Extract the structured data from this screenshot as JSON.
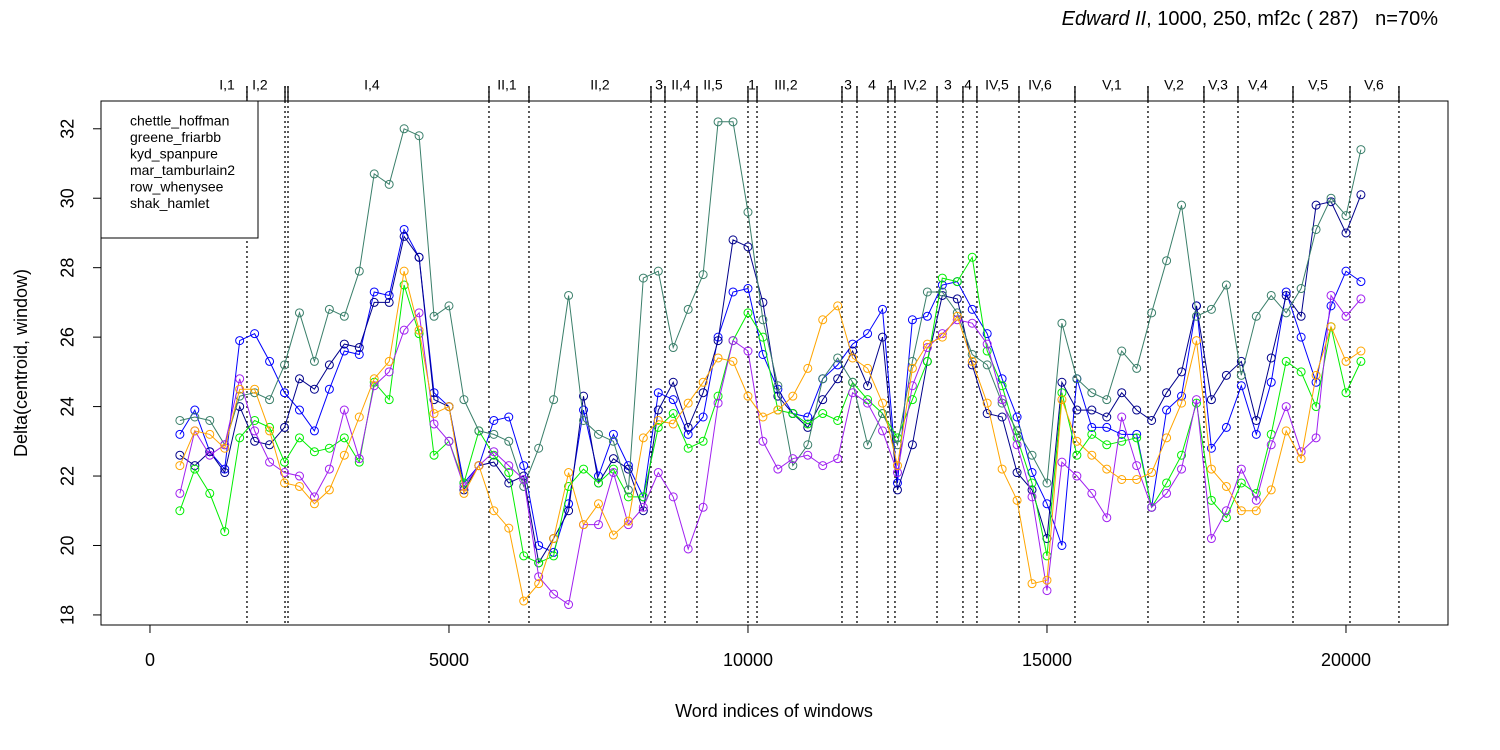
{
  "chart_data": {
    "type": "line",
    "title_italic": "Edward II",
    "title_rest": ", 1000, 250, mf2c ( 287)   n=70%",
    "x_label": "Word indices of windows",
    "y_label": "Delta(centroid, window)",
    "xlim": [
      -819,
      21706
    ],
    "ylim": [
      17.71,
      32.8
    ],
    "xticks": [
      0,
      5000,
      10000,
      15000,
      20000
    ],
    "yticks": [
      18,
      20,
      22,
      24,
      26,
      28,
      30,
      32
    ],
    "scene_boundaries": [
      1622,
      2258,
      2308,
      5669,
      6338,
      8378,
      8612,
      9147,
      10000,
      10151,
      11572,
      11823,
      12341,
      12458,
      13161,
      13595,
      13829,
      14532,
      15468,
      16689,
      17625,
      18194,
      19114,
      20067,
      20886
    ],
    "scenes": [
      {
        "label": "I,1",
        "x": 1288
      },
      {
        "label": "I,2",
        "x": 1839
      },
      {
        "label": "I,4",
        "x": 3712
      },
      {
        "label": "II,1",
        "x": 5970
      },
      {
        "label": "II,2",
        "x": 7525
      },
      {
        "label": "3",
        "x": 8512
      },
      {
        "label": "II,4",
        "x": 8880
      },
      {
        "label": "II,5",
        "x": 9415
      },
      {
        "label": "1",
        "x": 10067
      },
      {
        "label": "III,2",
        "x": 10635
      },
      {
        "label": "3",
        "x": 11672
      },
      {
        "label": "4",
        "x": 12074
      },
      {
        "label": "1",
        "x": 12391
      },
      {
        "label": "IV,2",
        "x": 12793
      },
      {
        "label": "3",
        "x": 13344
      },
      {
        "label": "4",
        "x": 13679
      },
      {
        "label": "IV,5",
        "x": 14164
      },
      {
        "label": "IV,6",
        "x": 14883
      },
      {
        "label": "V,1",
        "x": 16087
      },
      {
        "label": "V,2",
        "x": 17124
      },
      {
        "label": "V,3",
        "x": 17860
      },
      {
        "label": "V,4",
        "x": 18528
      },
      {
        "label": "V,5",
        "x": 19532
      },
      {
        "label": "V,6",
        "x": 20468
      }
    ],
    "x": [
      500,
      750,
      1000,
      1250,
      1500,
      1750,
      2000,
      2250,
      2500,
      2750,
      3000,
      3250,
      3500,
      3750,
      4000,
      4250,
      4500,
      4750,
      5000,
      5250,
      5500,
      5750,
      6000,
      6250,
      6500,
      6750,
      7000,
      7250,
      7500,
      7750,
      8000,
      8250,
      8500,
      8750,
      9000,
      9250,
      9500,
      9750,
      10000,
      10250,
      10500,
      10750,
      11000,
      11250,
      11500,
      11750,
      12000,
      12250,
      12500,
      12750,
      13000,
      13250,
      13500,
      13750,
      14000,
      14250,
      14500,
      14750,
      15000,
      15250,
      15500,
      15750,
      16000,
      16250,
      16500,
      16750,
      17000,
      17250,
      17500,
      17750,
      18000,
      18250,
      18500,
      18750,
      19000,
      19250,
      19500,
      19750,
      20000,
      20250
    ],
    "series": [
      {
        "name": "chettle_hoffman",
        "color": "#0000ff",
        "values": [
          23.2,
          23.9,
          22.7,
          22.2,
          25.9,
          26.1,
          25.3,
          24.4,
          23.9,
          23.3,
          24.5,
          25.6,
          25.5,
          27.3,
          27.2,
          29.1,
          28.3,
          24.4,
          24.0,
          21.8,
          22.3,
          23.6,
          23.7,
          22.3,
          20.0,
          19.8,
          21.2,
          23.9,
          22.0,
          23.2,
          22.3,
          21.4,
          24.4,
          24.2,
          23.2,
          23.7,
          26.0,
          27.3,
          27.4,
          25.5,
          24.5,
          23.8,
          23.7,
          24.8,
          25.2,
          25.8,
          26.1,
          26.8,
          21.8,
          26.5,
          26.6,
          27.5,
          27.6,
          26.8,
          26.1,
          24.8,
          23.7,
          22.1,
          21.2,
          20.0,
          24.8,
          23.4,
          23.4,
          23.2,
          23.2,
          21.1,
          23.9,
          24.3,
          26.9,
          22.8,
          23.4,
          24.6,
          23.2,
          24.7,
          27.3,
          26.0,
          24.7,
          26.9,
          27.9,
          27.6
        ]
      },
      {
        "name": "greene_friarbb",
        "color": "#00008b",
        "values": [
          22.6,
          22.3,
          22.7,
          22.1,
          24.0,
          23.0,
          22.9,
          23.4,
          24.8,
          24.5,
          25.2,
          25.8,
          25.7,
          27.0,
          27.0,
          28.9,
          28.3,
          24.2,
          24.0,
          21.6,
          22.3,
          22.4,
          21.8,
          22.0,
          19.5,
          20.2,
          21.0,
          24.3,
          21.8,
          22.5,
          22.2,
          21.0,
          23.9,
          24.7,
          23.4,
          24.4,
          25.9,
          28.8,
          28.6,
          27.0,
          24.3,
          23.8,
          23.4,
          24.2,
          24.8,
          25.6,
          24.6,
          26.0,
          21.6,
          22.9,
          25.3,
          27.2,
          27.1,
          25.2,
          23.8,
          23.7,
          22.1,
          21.6,
          20.2,
          24.7,
          23.9,
          23.9,
          23.7,
          24.4,
          23.9,
          23.6,
          24.4,
          25.0,
          26.9,
          24.2,
          24.9,
          25.3,
          23.6,
          25.4,
          27.2,
          26.6,
          29.8,
          29.9,
          29.0,
          30.1
        ]
      },
      {
        "name": "kyd_spanpure",
        "color": "#00ee00",
        "values": [
          21.0,
          22.2,
          21.5,
          20.4,
          23.1,
          23.6,
          23.4,
          22.4,
          23.1,
          22.7,
          22.8,
          23.1,
          22.4,
          24.7,
          24.2,
          27.5,
          26.1,
          22.6,
          23.0,
          21.8,
          23.3,
          22.6,
          22.1,
          19.7,
          19.5,
          19.7,
          21.7,
          22.2,
          21.8,
          22.2,
          21.4,
          21.4,
          23.4,
          23.8,
          22.8,
          23.0,
          24.3,
          25.9,
          26.7,
          26.0,
          23.9,
          23.8,
          23.5,
          23.8,
          23.6,
          24.7,
          24.2,
          23.8,
          23.1,
          24.2,
          25.3,
          27.7,
          27.6,
          28.3,
          25.6,
          24.6,
          23.1,
          21.8,
          19.7,
          24.4,
          22.6,
          23.2,
          22.9,
          23.0,
          23.1,
          21.1,
          21.8,
          22.6,
          24.1,
          21.3,
          20.8,
          21.8,
          21.5,
          23.2,
          25.3,
          25.0,
          24.0,
          26.3,
          24.4,
          25.3
        ]
      },
      {
        "name": "mar_tamburlain2",
        "color": "#3a7f6a",
        "values": [
          23.6,
          23.7,
          23.6,
          22.9,
          24.3,
          24.4,
          24.2,
          25.2,
          26.7,
          25.3,
          26.8,
          26.6,
          27.9,
          30.7,
          30.4,
          32.0,
          31.8,
          26.6,
          26.9,
          24.2,
          23.3,
          23.2,
          23.0,
          21.7,
          22.8,
          24.2,
          27.2,
          23.6,
          23.2,
          23.0,
          21.6,
          27.7,
          27.9,
          25.7,
          26.8,
          27.8,
          32.2,
          32.2,
          29.6,
          26.5,
          24.6,
          22.3,
          22.9,
          24.8,
          25.4,
          24.7,
          22.9,
          23.8,
          22.9,
          25.3,
          27.3,
          27.3,
          26.7,
          25.5,
          25.2,
          24.1,
          23.3,
          22.6,
          21.8,
          26.4,
          24.8,
          24.4,
          24.2,
          25.6,
          25.1,
          26.7,
          28.2,
          29.8,
          26.6,
          26.8,
          27.5,
          24.9,
          26.6,
          27.2,
          26.7,
          27.4,
          29.1,
          30.0,
          29.5,
          31.4
        ]
      },
      {
        "name": "row_whenysee",
        "color": "#a020f0",
        "values": [
          21.5,
          23.3,
          22.6,
          22.9,
          24.8,
          23.3,
          22.4,
          22.1,
          22.0,
          21.4,
          22.2,
          23.9,
          22.5,
          24.6,
          25.0,
          26.2,
          26.7,
          23.5,
          23.0,
          21.7,
          22.3,
          22.7,
          22.3,
          21.9,
          19.1,
          18.6,
          18.3,
          20.6,
          20.6,
          22.1,
          20.6,
          21.1,
          22.1,
          21.4,
          19.9,
          21.1,
          24.1,
          25.9,
          25.6,
          23.0,
          22.2,
          22.5,
          22.6,
          22.3,
          22.5,
          24.4,
          24.1,
          23.3,
          22.1,
          24.6,
          25.7,
          26.1,
          26.5,
          26.4,
          25.8,
          24.2,
          22.9,
          21.4,
          18.7,
          22.4,
          22.0,
          21.5,
          20.8,
          23.7,
          22.3,
          21.1,
          21.5,
          22.2,
          24.2,
          20.2,
          21.0,
          22.2,
          21.3,
          22.9,
          24.0,
          22.7,
          23.1,
          27.2,
          26.6,
          27.1
        ]
      },
      {
        "name": "shak_hamlet",
        "color": "#ffa500",
        "values": [
          22.3,
          23.3,
          23.2,
          22.8,
          24.5,
          24.5,
          23.3,
          21.8,
          21.7,
          21.2,
          21.6,
          22.6,
          23.7,
          24.8,
          25.3,
          27.9,
          26.2,
          23.8,
          24.0,
          21.5,
          22.3,
          21.0,
          20.5,
          18.4,
          18.9,
          20.2,
          22.1,
          20.6,
          21.2,
          20.3,
          20.7,
          23.1,
          23.6,
          23.5,
          24.1,
          24.7,
          25.4,
          25.3,
          24.3,
          23.7,
          23.9,
          24.3,
          25.1,
          26.5,
          26.9,
          25.4,
          25.1,
          24.1,
          22.3,
          25.1,
          25.8,
          26.0,
          26.6,
          25.3,
          24.1,
          22.2,
          21.3,
          18.9,
          19.0,
          24.2,
          23.0,
          22.6,
          22.2,
          21.9,
          21.9,
          22.1,
          23.1,
          24.1,
          25.9,
          22.2,
          21.7,
          21.0,
          21.0,
          21.6,
          23.3,
          22.5,
          24.9,
          26.3,
          25.3,
          25.6
        ]
      }
    ]
  }
}
